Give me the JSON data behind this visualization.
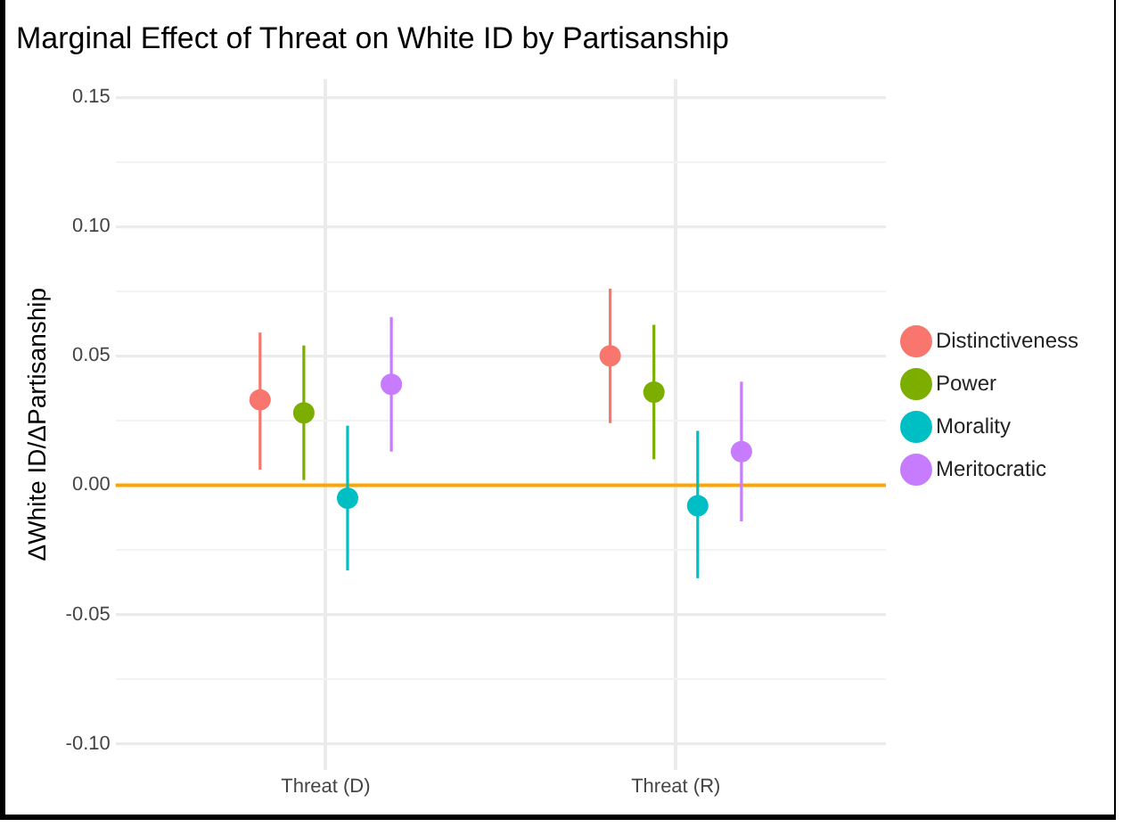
{
  "chart_data": {
    "type": "scatter",
    "title": "Marginal Effect of Threat on White ID by Partisanship",
    "ylabel": "ΔWhite ID/ΔPartisanship",
    "categories": [
      "Threat (D)",
      "Threat (R)"
    ],
    "series": [
      {
        "name": "Distinctiveness",
        "color": "#f8766d",
        "values": [
          0.033,
          0.05
        ],
        "errors": [
          [
            0.006,
            0.059
          ],
          [
            0.024,
            0.076
          ]
        ]
      },
      {
        "name": "Power",
        "color": "#7cae00",
        "values": [
          0.028,
          0.036
        ],
        "errors": [
          [
            0.002,
            0.054
          ],
          [
            0.01,
            0.062
          ]
        ]
      },
      {
        "name": "Morality",
        "color": "#00bfc4",
        "values": [
          -0.005,
          -0.008
        ],
        "errors": [
          [
            -0.033,
            0.023
          ],
          [
            -0.036,
            0.021
          ]
        ]
      },
      {
        "name": "Meritocratic",
        "color": "#c77cff",
        "values": [
          0.039,
          0.013
        ],
        "errors": [
          [
            0.013,
            0.065
          ],
          [
            -0.014,
            0.04
          ]
        ]
      }
    ],
    "ylim": [
      -0.11,
      0.157
    ],
    "yticks": [
      {
        "value": -0.1,
        "label": "-0.10"
      },
      {
        "value": -0.075,
        "label": null
      },
      {
        "value": -0.05,
        "label": "-0.05"
      },
      {
        "value": -0.025,
        "label": null
      },
      {
        "value": 0,
        "label": "0.00"
      },
      {
        "value": 0.025,
        "label": null
      },
      {
        "value": 0.05,
        "label": "0.05"
      },
      {
        "value": 0.075,
        "label": null
      },
      {
        "value": 0.1,
        "label": "0.10"
      },
      {
        "value": 0.125,
        "label": null
      },
      {
        "value": 0.15,
        "label": "0.15"
      }
    ],
    "ref_lines": [
      {
        "axis": "y",
        "value": 0,
        "color": "#ffa500"
      }
    ],
    "grid": true,
    "legend": "right",
    "marker": "circle"
  }
}
